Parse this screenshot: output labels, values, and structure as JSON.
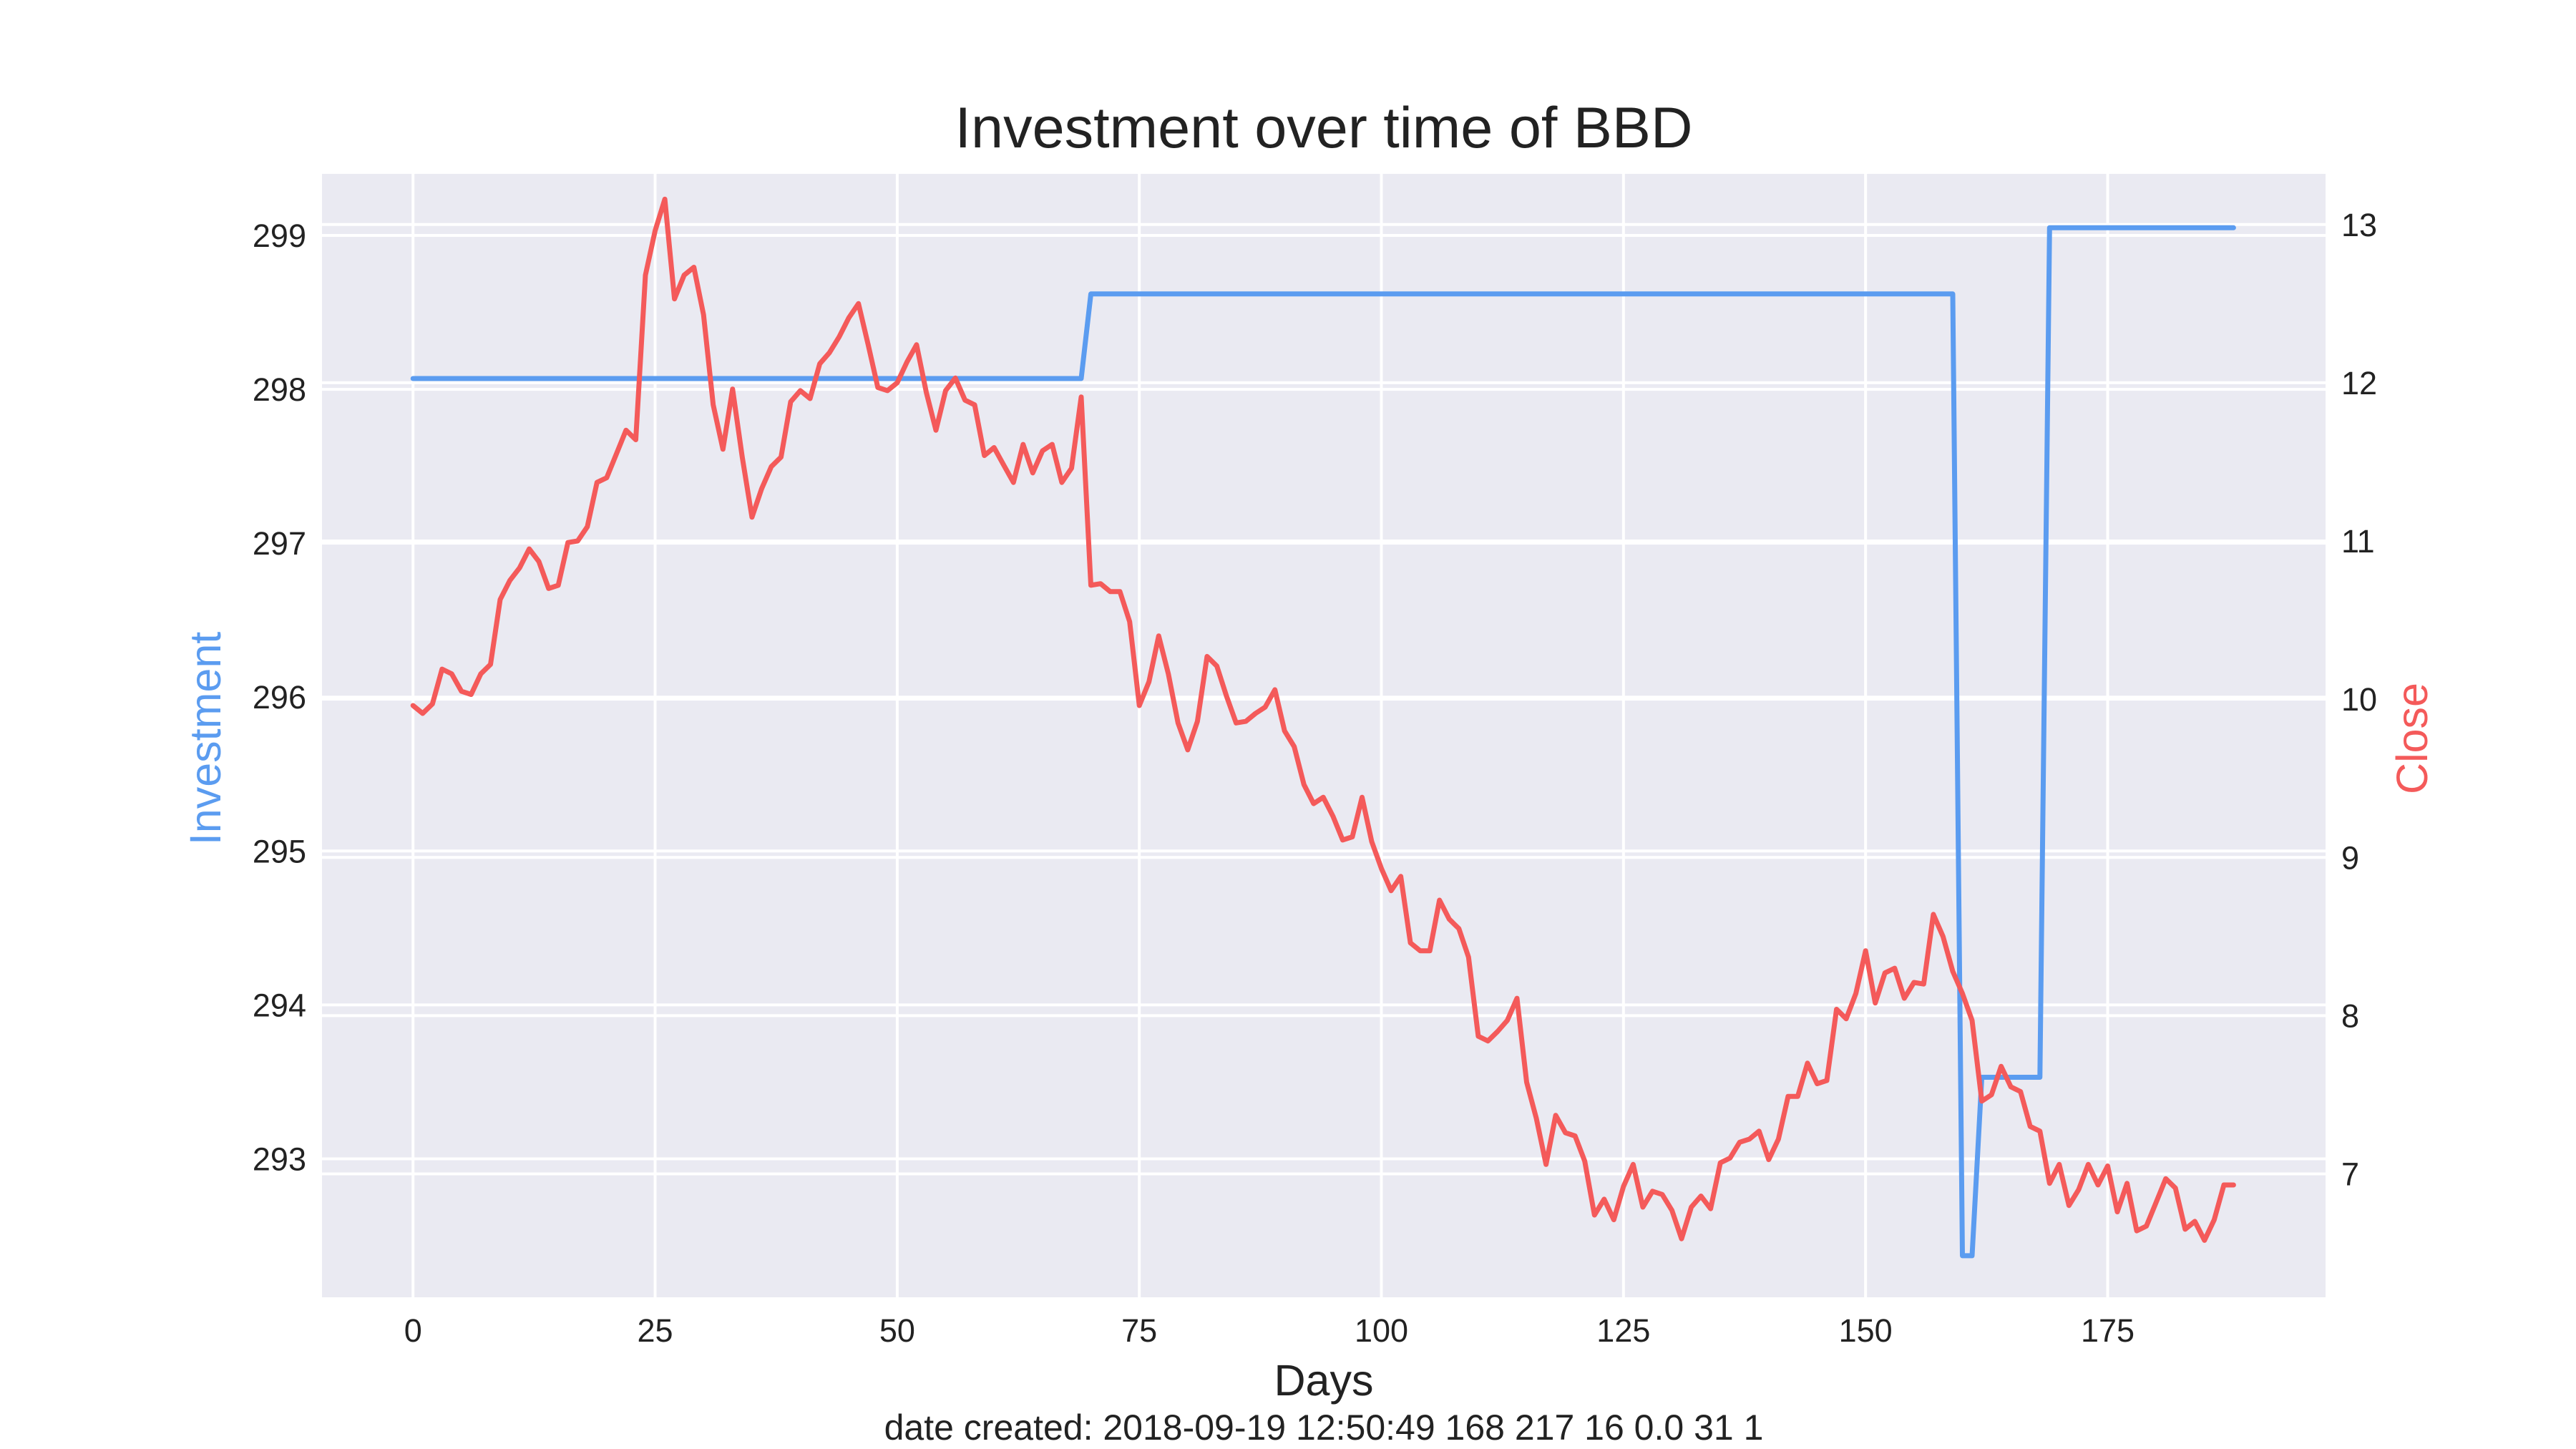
{
  "chart_data": {
    "type": "line",
    "title": "Investment over time of BBD",
    "xlabel": "Days",
    "ylabel_left": "Investment",
    "ylabel_right": "Close",
    "footer": "date created: 2018-09-19 12:50:49 168 217 16 0.0 31 1",
    "xlim": [
      -9.4,
      197.5
    ],
    "ylim_left": [
      292.1,
      299.4
    ],
    "ylim_right": [
      6.22,
      13.32
    ],
    "x_ticks": [
      0,
      25,
      50,
      75,
      100,
      125,
      150,
      175
    ],
    "y_left_ticks": [
      293,
      294,
      295,
      296,
      297,
      298,
      299
    ],
    "y_right_ticks": [
      7,
      8,
      9,
      10,
      11,
      12,
      13
    ],
    "grid": true,
    "colors": {
      "investment": "#5b9cf0",
      "close": "#f45a5a",
      "plot_background": "#eaeaf2",
      "grid": "#ffffff",
      "text": "#222222"
    },
    "series": [
      {
        "name": "Investment",
        "axis": "left",
        "points": [
          [
            0,
            298.07
          ],
          [
            69,
            298.07
          ],
          [
            70,
            298.62
          ],
          [
            159,
            298.62
          ],
          [
            160,
            292.37
          ],
          [
            161,
            292.37
          ],
          [
            162,
            293.53
          ],
          [
            168,
            293.53
          ],
          [
            169,
            299.05
          ],
          [
            188,
            299.05
          ]
        ]
      },
      {
        "name": "Close",
        "axis": "right",
        "points": [
          [
            0,
            9.96
          ],
          [
            1,
            9.91
          ],
          [
            2,
            9.97
          ],
          [
            3,
            10.19
          ],
          [
            4,
            10.16
          ],
          [
            5,
            10.05
          ],
          [
            6,
            10.03
          ],
          [
            7,
            10.16
          ],
          [
            8,
            10.22
          ],
          [
            9,
            10.63
          ],
          [
            10,
            10.75
          ],
          [
            11,
            10.83
          ],
          [
            12,
            10.95
          ],
          [
            13,
            10.87
          ],
          [
            14,
            10.7
          ],
          [
            15,
            10.72
          ],
          [
            16,
            10.99
          ],
          [
            17,
            11.0
          ],
          [
            18,
            11.09
          ],
          [
            19,
            11.37
          ],
          [
            20,
            11.4
          ],
          [
            21,
            11.55
          ],
          [
            22,
            11.7
          ],
          [
            23,
            11.64
          ],
          [
            24,
            12.68
          ],
          [
            25,
            12.96
          ],
          [
            26,
            13.16
          ],
          [
            27,
            12.53
          ],
          [
            28,
            12.68
          ],
          [
            29,
            12.73
          ],
          [
            30,
            12.43
          ],
          [
            31,
            11.86
          ],
          [
            32,
            11.58
          ],
          [
            33,
            11.96
          ],
          [
            34,
            11.53
          ],
          [
            35,
            11.15
          ],
          [
            36,
            11.33
          ],
          [
            37,
            11.47
          ],
          [
            38,
            11.53
          ],
          [
            39,
            11.88
          ],
          [
            40,
            11.95
          ],
          [
            41,
            11.9
          ],
          [
            42,
            12.12
          ],
          [
            43,
            12.19
          ],
          [
            44,
            12.29
          ],
          [
            45,
            12.41
          ],
          [
            46,
            12.5
          ],
          [
            47,
            12.24
          ],
          [
            48,
            11.97
          ],
          [
            49,
            11.95
          ],
          [
            50,
            12.0
          ],
          [
            51,
            12.13
          ],
          [
            52,
            12.24
          ],
          [
            53,
            11.94
          ],
          [
            54,
            11.7
          ],
          [
            55,
            11.95
          ],
          [
            56,
            12.03
          ],
          [
            57,
            11.89
          ],
          [
            58,
            11.86
          ],
          [
            59,
            11.54
          ],
          [
            60,
            11.59
          ],
          [
            61,
            11.48
          ],
          [
            62,
            11.37
          ],
          [
            63,
            11.61
          ],
          [
            64,
            11.43
          ],
          [
            65,
            11.57
          ],
          [
            66,
            11.61
          ],
          [
            67,
            11.37
          ],
          [
            68,
            11.46
          ],
          [
            69,
            11.91
          ],
          [
            70,
            10.72
          ],
          [
            71,
            10.73
          ],
          [
            72,
            10.68
          ],
          [
            73,
            10.68
          ],
          [
            74,
            10.49
          ],
          [
            75,
            9.96
          ],
          [
            76,
            10.11
          ],
          [
            77,
            10.4
          ],
          [
            78,
            10.16
          ],
          [
            79,
            9.85
          ],
          [
            80,
            9.68
          ],
          [
            81,
            9.86
          ],
          [
            82,
            10.27
          ],
          [
            83,
            10.21
          ],
          [
            84,
            10.02
          ],
          [
            85,
            9.85
          ],
          [
            86,
            9.86
          ],
          [
            87,
            9.91
          ],
          [
            88,
            9.95
          ],
          [
            89,
            10.06
          ],
          [
            90,
            9.8
          ],
          [
            91,
            9.7
          ],
          [
            92,
            9.46
          ],
          [
            93,
            9.34
          ],
          [
            94,
            9.38
          ],
          [
            95,
            9.26
          ],
          [
            96,
            9.11
          ],
          [
            97,
            9.13
          ],
          [
            98,
            9.38
          ],
          [
            99,
            9.1
          ],
          [
            100,
            8.93
          ],
          [
            101,
            8.79
          ],
          [
            102,
            8.88
          ],
          [
            103,
            8.46
          ],
          [
            104,
            8.41
          ],
          [
            105,
            8.41
          ],
          [
            106,
            8.73
          ],
          [
            107,
            8.61
          ],
          [
            108,
            8.55
          ],
          [
            109,
            8.37
          ],
          [
            110,
            7.87
          ],
          [
            111,
            7.84
          ],
          [
            112,
            7.9
          ],
          [
            113,
            7.97
          ],
          [
            114,
            8.11
          ],
          [
            115,
            7.58
          ],
          [
            116,
            7.35
          ],
          [
            117,
            7.06
          ],
          [
            118,
            7.37
          ],
          [
            119,
            7.26
          ],
          [
            120,
            7.24
          ],
          [
            121,
            7.08
          ],
          [
            122,
            6.74
          ],
          [
            123,
            6.84
          ],
          [
            124,
            6.71
          ],
          [
            125,
            6.92
          ],
          [
            126,
            7.06
          ],
          [
            127,
            6.79
          ],
          [
            128,
            6.89
          ],
          [
            129,
            6.87
          ],
          [
            130,
            6.77
          ],
          [
            131,
            6.59
          ],
          [
            132,
            6.79
          ],
          [
            133,
            6.86
          ],
          [
            134,
            6.78
          ],
          [
            135,
            7.07
          ],
          [
            136,
            7.1
          ],
          [
            137,
            7.2
          ],
          [
            138,
            7.22
          ],
          [
            139,
            7.27
          ],
          [
            140,
            7.09
          ],
          [
            141,
            7.22
          ],
          [
            142,
            7.49
          ],
          [
            143,
            7.49
          ],
          [
            144,
            7.7
          ],
          [
            145,
            7.57
          ],
          [
            146,
            7.59
          ],
          [
            147,
            8.04
          ],
          [
            148,
            7.98
          ],
          [
            149,
            8.14
          ],
          [
            150,
            8.41
          ],
          [
            151,
            8.08
          ],
          [
            152,
            8.27
          ],
          [
            153,
            8.3
          ],
          [
            154,
            8.11
          ],
          [
            155,
            8.21
          ],
          [
            156,
            8.2
          ],
          [
            157,
            8.64
          ],
          [
            158,
            8.5
          ],
          [
            159,
            8.28
          ],
          [
            160,
            8.14
          ],
          [
            161,
            7.97
          ],
          [
            162,
            7.46
          ],
          [
            163,
            7.5
          ],
          [
            164,
            7.68
          ],
          [
            165,
            7.55
          ],
          [
            166,
            7.52
          ],
          [
            167,
            7.3
          ],
          [
            168,
            7.27
          ],
          [
            169,
            6.94
          ],
          [
            170,
            7.06
          ],
          [
            171,
            6.8
          ],
          [
            172,
            6.9
          ],
          [
            173,
            7.06
          ],
          [
            174,
            6.93
          ],
          [
            175,
            7.05
          ],
          [
            176,
            6.76
          ],
          [
            177,
            6.94
          ],
          [
            178,
            6.64
          ],
          [
            179,
            6.67
          ],
          [
            180,
            6.82
          ],
          [
            181,
            6.97
          ],
          [
            182,
            6.91
          ],
          [
            183,
            6.65
          ],
          [
            184,
            6.7
          ],
          [
            185,
            6.58
          ],
          [
            186,
            6.71
          ],
          [
            187,
            6.93
          ],
          [
            188,
            6.93
          ]
        ]
      }
    ]
  }
}
